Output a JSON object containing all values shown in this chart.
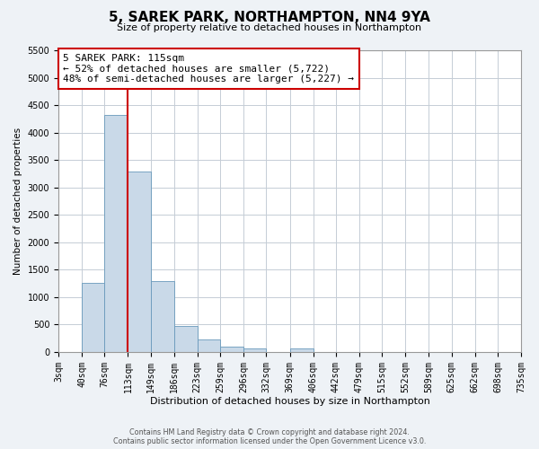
{
  "title": "5, SAREK PARK, NORTHAMPTON, NN4 9YA",
  "subtitle": "Size of property relative to detached houses in Northampton",
  "xlabel": "Distribution of detached houses by size in Northampton",
  "ylabel": "Number of detached properties",
  "bin_labels": [
    "3sqm",
    "40sqm",
    "76sqm",
    "113sqm",
    "149sqm",
    "186sqm",
    "223sqm",
    "259sqm",
    "296sqm",
    "332sqm",
    "369sqm",
    "406sqm",
    "442sqm",
    "479sqm",
    "515sqm",
    "552sqm",
    "589sqm",
    "625sqm",
    "662sqm",
    "698sqm",
    "735sqm"
  ],
  "bin_edges": [
    3,
    40,
    76,
    113,
    149,
    186,
    223,
    259,
    296,
    332,
    369,
    406,
    442,
    479,
    515,
    552,
    589,
    625,
    662,
    698,
    735
  ],
  "bar_values": [
    0,
    1270,
    4320,
    3290,
    1290,
    470,
    230,
    90,
    60,
    0,
    60,
    0,
    0,
    0,
    0,
    0,
    0,
    0,
    0,
    0
  ],
  "bar_color": "#c9d9e8",
  "bar_edgecolor": "#6899bb",
  "vline_x": 113,
  "vline_color": "#cc0000",
  "annotation_title": "5 SAREK PARK: 115sqm",
  "annotation_line1": "← 52% of detached houses are smaller (5,722)",
  "annotation_line2": "48% of semi-detached houses are larger (5,227) →",
  "annotation_box_facecolor": "#ffffff",
  "annotation_box_edgecolor": "#cc0000",
  "ylim": [
    0,
    5500
  ],
  "yticks": [
    0,
    500,
    1000,
    1500,
    2000,
    2500,
    3000,
    3500,
    4000,
    4500,
    5000,
    5500
  ],
  "footer_line1": "Contains HM Land Registry data © Crown copyright and database right 2024.",
  "footer_line2": "Contains public sector information licensed under the Open Government Licence v3.0.",
  "fig_bg_color": "#eef2f6",
  "plot_bg_color": "#ffffff",
  "grid_color": "#c5cdd6",
  "title_fontsize": 11,
  "subtitle_fontsize": 8,
  "xlabel_fontsize": 8,
  "ylabel_fontsize": 7.5,
  "tick_fontsize": 7,
  "annotation_fontsize": 8,
  "footer_fontsize": 5.8
}
